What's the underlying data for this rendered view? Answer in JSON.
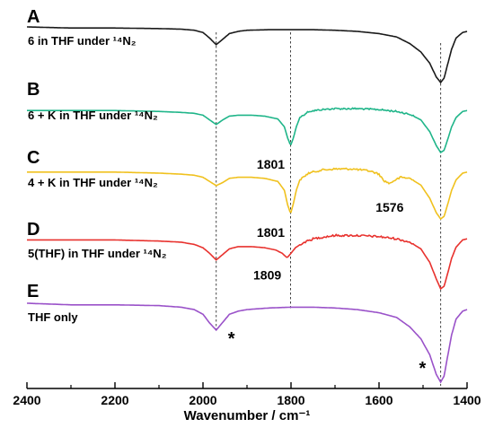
{
  "chart_data": {
    "type": "line",
    "xlabel": "Wavenumber / cm⁻¹",
    "xlim": [
      2400,
      1400
    ],
    "x_reversed": true,
    "x_ticks": [
      2400,
      2200,
      2000,
      1800,
      1600,
      1400
    ],
    "x_tick_labels": [
      "2400",
      "2200",
      "2000",
      "1800",
      "1600",
      "1400"
    ],
    "y_axis_shown": false,
    "reference_lines_x": [
      1970,
      1801,
      1460
    ],
    "series": [
      {
        "letter": "A",
        "name": "6 in THF under ¹⁴N₂",
        "color": "#1a1a1a",
        "x": [
          2400,
          2300,
          2200,
          2100,
          2050,
          2020,
          2000,
          1985,
          1970,
          1955,
          1940,
          1920,
          1900,
          1850,
          1801,
          1750,
          1700,
          1650,
          1600,
          1560,
          1530,
          1505,
          1485,
          1470,
          1460,
          1452,
          1445,
          1435,
          1425,
          1410,
          1400
        ],
        "y": [
          0,
          0.02,
          0.02,
          0.03,
          0.04,
          0.06,
          0.1,
          0.2,
          0.32,
          0.22,
          0.12,
          0.08,
          0.06,
          0.05,
          0.05,
          0.05,
          0.06,
          0.08,
          0.12,
          0.18,
          0.3,
          0.45,
          0.65,
          0.9,
          1,
          0.92,
          0.7,
          0.4,
          0.2,
          0.1,
          0.08
        ],
        "annotations": []
      },
      {
        "letter": "B",
        "name": "6 + K in THF under ¹⁴N₂",
        "color": "#1fb589",
        "x": [
          2400,
          2300,
          2200,
          2100,
          2050,
          2020,
          2000,
          1985,
          1970,
          1955,
          1940,
          1920,
          1890,
          1860,
          1830,
          1815,
          1808,
          1801,
          1795,
          1788,
          1780,
          1760,
          1730,
          1700,
          1650,
          1600,
          1560,
          1530,
          1505,
          1485,
          1470,
          1460,
          1452,
          1445,
          1435,
          1425,
          1410,
          1400
        ],
        "y": [
          0.1,
          0.1,
          0.1,
          0.12,
          0.14,
          0.16,
          0.2,
          0.3,
          0.4,
          0.3,
          0.22,
          0.2,
          0.2,
          0.22,
          0.28,
          0.45,
          0.68,
          0.85,
          0.7,
          0.45,
          0.25,
          0.12,
          0.08,
          0.06,
          0.06,
          0.08,
          0.12,
          0.18,
          0.3,
          0.55,
          0.85,
          1,
          0.95,
          0.75,
          0.45,
          0.25,
          0.12,
          0.1
        ],
        "annotations": [
          {
            "x": 1801,
            "text": "1801"
          }
        ]
      },
      {
        "letter": "C",
        "name": "4 + K in THF under ¹⁴N₂",
        "color": "#f0c11e",
        "x": [
          2400,
          2300,
          2200,
          2100,
          2050,
          2020,
          2000,
          1985,
          1970,
          1955,
          1940,
          1920,
          1890,
          1860,
          1830,
          1815,
          1808,
          1801,
          1795,
          1788,
          1780,
          1760,
          1730,
          1700,
          1660,
          1620,
          1600,
          1590,
          1576,
          1565,
          1550,
          1530,
          1505,
          1485,
          1470,
          1460,
          1452,
          1445,
          1435,
          1425,
          1410,
          1400
        ],
        "y": [
          0.1,
          0.1,
          0.1,
          0.12,
          0.14,
          0.16,
          0.2,
          0.28,
          0.36,
          0.3,
          0.22,
          0.2,
          0.2,
          0.22,
          0.28,
          0.45,
          0.72,
          0.9,
          0.72,
          0.45,
          0.25,
          0.12,
          0.06,
          0.04,
          0.04,
          0.08,
          0.14,
          0.26,
          0.32,
          0.26,
          0.2,
          0.22,
          0.35,
          0.6,
          0.88,
          1,
          0.95,
          0.75,
          0.45,
          0.25,
          0.12,
          0.1
        ],
        "annotations": [
          {
            "x": 1801,
            "text": "1801"
          },
          {
            "x": 1576,
            "text": "1576"
          }
        ]
      },
      {
        "letter": "D",
        "name": "5(THF) in THF under ¹⁴N₂",
        "color": "#e8322e",
        "x": [
          2400,
          2300,
          2200,
          2100,
          2050,
          2020,
          2000,
          1985,
          1970,
          1955,
          1940,
          1920,
          1890,
          1860,
          1835,
          1820,
          1809,
          1800,
          1790,
          1775,
          1750,
          1720,
          1700,
          1650,
          1600,
          1560,
          1530,
          1505,
          1485,
          1470,
          1460,
          1452,
          1445,
          1435,
          1425,
          1410,
          1400
        ],
        "y": [
          0.12,
          0.12,
          0.12,
          0.14,
          0.16,
          0.2,
          0.26,
          0.36,
          0.48,
          0.38,
          0.28,
          0.24,
          0.24,
          0.26,
          0.3,
          0.36,
          0.44,
          0.36,
          0.26,
          0.18,
          0.1,
          0.06,
          0.04,
          0.04,
          0.06,
          0.1,
          0.16,
          0.28,
          0.52,
          0.82,
          1,
          0.95,
          0.75,
          0.45,
          0.25,
          0.12,
          0.1
        ],
        "annotations": [
          {
            "x": 1809,
            "text": "1809"
          }
        ]
      },
      {
        "letter": "E",
        "name": "THF only",
        "color": "#9a52c9",
        "x": [
          2400,
          2300,
          2200,
          2100,
          2050,
          2020,
          2000,
          1985,
          1970,
          1955,
          1940,
          1920,
          1900,
          1850,
          1801,
          1750,
          1700,
          1650,
          1600,
          1560,
          1530,
          1505,
          1485,
          1470,
          1460,
          1452,
          1445,
          1435,
          1425,
          1410,
          1400
        ],
        "y": [
          0,
          0.02,
          0.02,
          0.03,
          0.05,
          0.08,
          0.14,
          0.25,
          0.34,
          0.24,
          0.14,
          0.1,
          0.08,
          0.06,
          0.05,
          0.05,
          0.06,
          0.08,
          0.12,
          0.18,
          0.3,
          0.45,
          0.65,
          0.9,
          1,
          0.92,
          0.7,
          0.4,
          0.2,
          0.1,
          0.08
        ],
        "annotations": [
          {
            "x": 1960,
            "text": "*"
          },
          {
            "x": 1485,
            "text": "*"
          }
        ]
      }
    ]
  }
}
